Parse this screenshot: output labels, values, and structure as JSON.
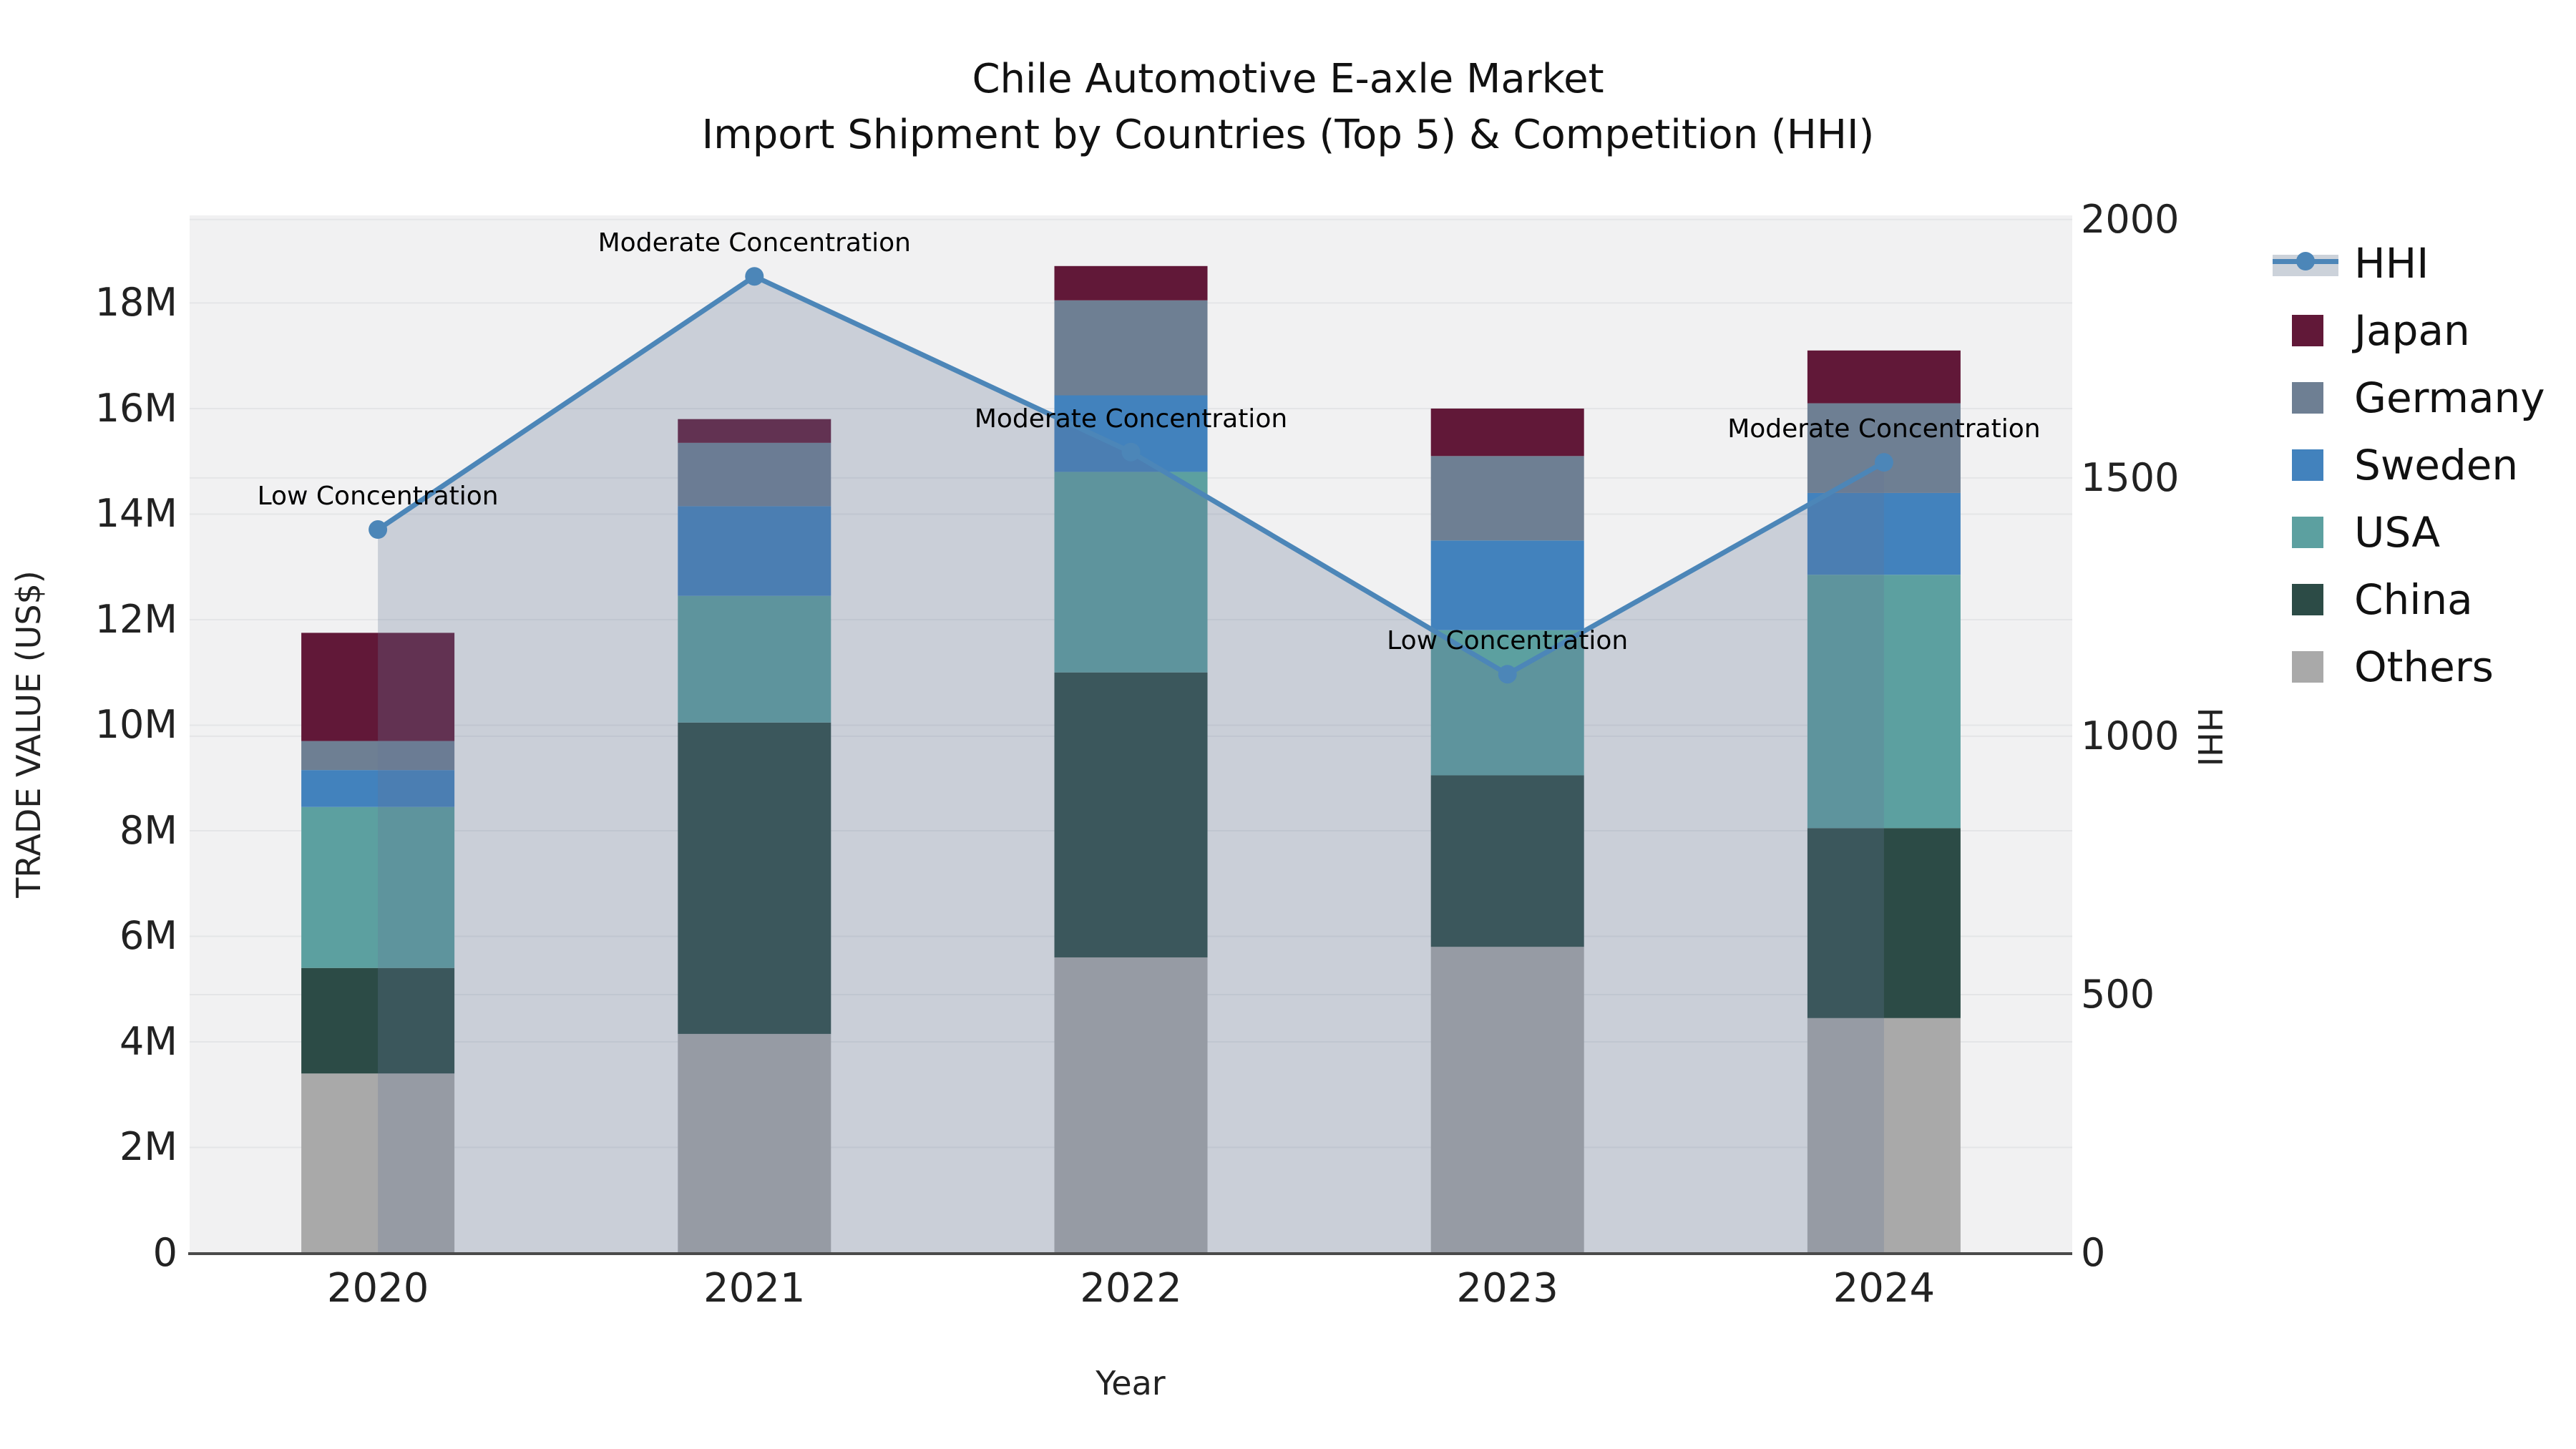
{
  "title": {
    "line1": "Chile Automotive E-axle Market",
    "line2": "Import Shipment by Countries (Top 5) & Competition (HHI)"
  },
  "axes": {
    "left": {
      "title": "TRADE VALUE (US$)",
      "tick_values_millions": [
        0,
        2,
        4,
        6,
        8,
        10,
        12,
        14,
        16,
        18
      ],
      "tick_labels": [
        "0",
        "2M",
        "4M",
        "6M",
        "8M",
        "10M",
        "12M",
        "14M",
        "16M",
        "18M"
      ]
    },
    "right": {
      "title": "HHI",
      "tick_values": [
        0,
        500,
        1000,
        1500,
        2000
      ],
      "tick_labels": [
        "0",
        "500",
        "1000",
        "1500",
        "2000"
      ]
    },
    "x": {
      "title": "Year",
      "tick_labels": [
        "2020",
        "2021",
        "2022",
        "2023",
        "2024"
      ]
    }
  },
  "chart_data": {
    "type": "bar",
    "subtype": "stacked-bars-with-line-on-secondary-axis",
    "title": "Chile Automotive E-axle Market Import Shipment by Countries (Top 5) & Competition (HHI)",
    "xlabel": "Year",
    "ylabel": "TRADE VALUE (US$)",
    "ylabel_right": "HHI",
    "categories": [
      "2020",
      "2021",
      "2022",
      "2023",
      "2024"
    ],
    "value_unit": "millions US$",
    "ylim_left_millions": [
      0,
      19.66
    ],
    "ylim_right": [
      0,
      2008
    ],
    "grid": true,
    "legend_position": "right",
    "stack_order_bottom_to_top": [
      "Others",
      "China",
      "USA",
      "Sweden",
      "Germany",
      "Japan"
    ],
    "series": [
      {
        "name": "Japan",
        "color": "#611838",
        "values_millions": [
          2.05,
          0.45,
          0.65,
          0.9,
          1.0
        ]
      },
      {
        "name": "Germany",
        "color": "#6e7f93",
        "values_millions": [
          0.55,
          1.2,
          1.8,
          1.6,
          1.7
        ]
      },
      {
        "name": "Sweden",
        "color": "#4282bd",
        "values_millions": [
          0.7,
          1.7,
          1.45,
          1.7,
          1.55
        ]
      },
      {
        "name": "USA",
        "color": "#5ca0a0",
        "values_millions": [
          3.05,
          2.4,
          3.8,
          2.75,
          4.8
        ]
      },
      {
        "name": "China",
        "color": "#2c4b46",
        "values_millions": [
          2.0,
          5.9,
          5.4,
          3.25,
          3.6
        ]
      },
      {
        "name": "Others",
        "color": "#a9a9a9",
        "values_millions": [
          3.4,
          4.15,
          5.6,
          5.8,
          4.45
        ]
      }
    ],
    "hhi_series": {
      "name": "HHI",
      "axis": "right",
      "line_color": "#4c86b8",
      "fill": "tozeroy",
      "fill_color": "rgba(100,120,150,0.28)",
      "values": [
        1400,
        1890,
        1550,
        1120,
        1530
      ]
    },
    "annotations": [
      {
        "x": "2020",
        "text": "Low Concentration"
      },
      {
        "x": "2021",
        "text": "Moderate Concentration"
      },
      {
        "x": "2022",
        "text": "Moderate Concentration"
      },
      {
        "x": "2023",
        "text": "Low Concentration"
      },
      {
        "x": "2024",
        "text": "Moderate Concentration"
      }
    ]
  },
  "legend": {
    "items": [
      {
        "label": "HHI",
        "marker": "line-with-dot-over-band"
      },
      {
        "label": "Japan",
        "marker": "square"
      },
      {
        "label": "Germany",
        "marker": "square"
      },
      {
        "label": "Sweden",
        "marker": "square"
      },
      {
        "label": "USA",
        "marker": "square"
      },
      {
        "label": "China",
        "marker": "square"
      },
      {
        "label": "Others",
        "marker": "square"
      }
    ]
  },
  "colors": {
    "plot_background": "#f1f1f2",
    "gridline": "#e4e5e7",
    "axis_line": "#4a4a4a",
    "text": "#111111"
  }
}
